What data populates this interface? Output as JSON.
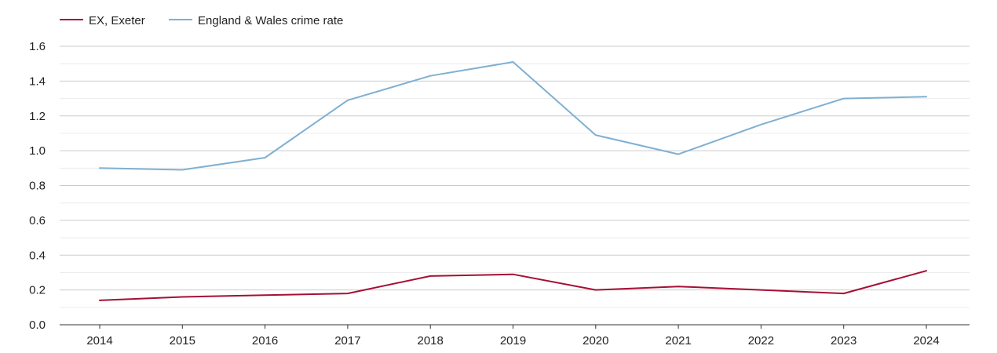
{
  "chart_data": {
    "type": "line",
    "title": "",
    "xlabel": "",
    "ylabel": "",
    "categories": [
      "2014",
      "2015",
      "2016",
      "2017",
      "2018",
      "2019",
      "2020",
      "2021",
      "2022",
      "2023",
      "2024"
    ],
    "ylim": [
      0,
      1.6
    ],
    "yticks": [
      "0.0",
      "0.2",
      "0.4",
      "0.6",
      "0.8",
      "1.0",
      "1.2",
      "1.4",
      "1.6"
    ],
    "grid": true,
    "legend_position": "top-left",
    "series": [
      {
        "name": "EX, Exeter",
        "color": "#a50f35",
        "values": [
          0.14,
          0.16,
          0.17,
          0.18,
          0.28,
          0.29,
          0.2,
          0.22,
          0.2,
          0.18,
          0.31
        ]
      },
      {
        "name": "England & Wales crime rate",
        "color": "#7fb0d2",
        "values": [
          0.9,
          0.89,
          0.96,
          1.29,
          1.43,
          1.51,
          1.09,
          0.98,
          1.15,
          1.3,
          1.31
        ]
      }
    ]
  }
}
